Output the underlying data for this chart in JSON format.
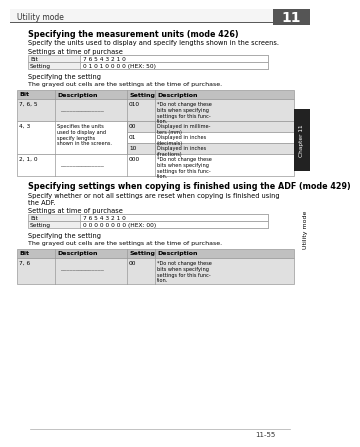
{
  "page_header": "Utility mode",
  "chapter_num": "11",
  "page_num": "11-55",
  "section1_title": "Specifying the measurement units (mode 426)",
  "section1_desc": "Specify the units used to display and specify lengths shown in the screens.",
  "section1_label1": "Settings at time of purchase",
  "table1_bit_label": "Bit",
  "table1_bit_val": "7 6 5 4 3 2 1 0",
  "table1_setting_label": "Setting",
  "table1_setting_val": "0 1 0 1 0 0 0 0 (HEX: 50)",
  "spec_setting_label": "Specifying the setting",
  "spec_setting_desc": "The grayed out cells are the settings at the time of purchase.",
  "main_table1_headers": [
    "Bit",
    "Description",
    "Setting",
    "Description"
  ],
  "section2_title": "Specifying settings when copying is finished using the ADF (mode 429)",
  "section2_desc1": "Specify whether or not all settings are reset when copying is finished using",
  "section2_desc2": "the ADF.",
  "section2_label1": "Settings at time of purchase",
  "table2_bit_label": "Bit",
  "table2_bit_val": "7 6 5 4 3 2 1 0",
  "table2_setting_label": "Setting",
  "table2_setting_val": "0 0 0 0 0 0 0 0 (HEX: 00)",
  "spec_setting_label2": "Specifying the setting",
  "spec_setting_desc2": "The grayed out cells are the settings at the time of purchase.",
  "main_table2_headers": [
    "Bit",
    "Description",
    "Setting",
    "Description"
  ],
  "bg_color": "#ffffff",
  "table_header_bg": "#c0c0c0",
  "shaded_row_bg": "#e0e0e0",
  "border_color": "#999999",
  "header_line_color": "#555555",
  "sidebar_bg": "#222222",
  "chapter_box_bg": "#555555"
}
